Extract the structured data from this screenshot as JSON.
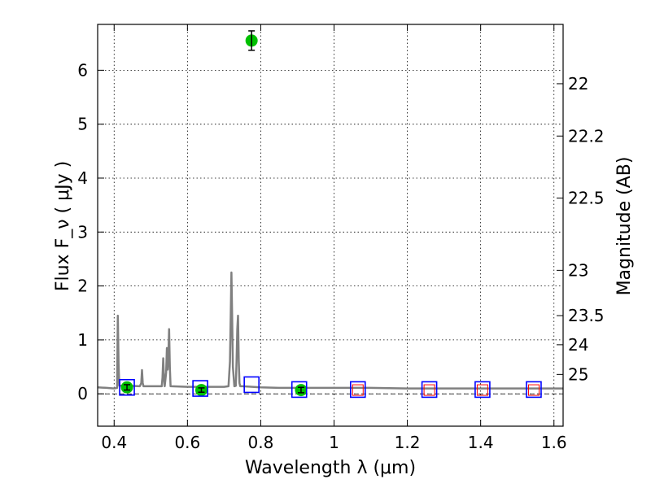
{
  "chart_data": {
    "type": "scatter",
    "title": "",
    "xlabel": "Wavelength  λ (μm)",
    "ylabel": "Flux  F_ν  ( μJy )",
    "ylabel_right": "Magnitude (AB)",
    "xlim": [
      0.355,
      1.625
    ],
    "ylim": [
      -0.6,
      6.85
    ],
    "grid": true,
    "x_ticks": [
      {
        "value": 0.4,
        "label": "0.4"
      },
      {
        "value": 0.6,
        "label": "0.6"
      },
      {
        "value": 0.8,
        "label": "0.8"
      },
      {
        "value": 1.0,
        "label": "1"
      },
      {
        "value": 1.2,
        "label": "1.2"
      },
      {
        "value": 1.4,
        "label": "1.4"
      },
      {
        "value": 1.6,
        "label": "1.6"
      }
    ],
    "y_ticks": [
      {
        "value": 0,
        "label": "0"
      },
      {
        "value": 1,
        "label": "1"
      },
      {
        "value": 2,
        "label": "2"
      },
      {
        "value": 3,
        "label": "3"
      },
      {
        "value": 4,
        "label": "4"
      },
      {
        "value": 5,
        "label": "5"
      },
      {
        "value": 6,
        "label": "6"
      }
    ],
    "right_ticks": [
      {
        "flux": 5.75,
        "label": "22"
      },
      {
        "flux": 4.78,
        "label": "22.2"
      },
      {
        "flux": 3.63,
        "label": "22.5"
      },
      {
        "flux": 2.29,
        "label": "23"
      },
      {
        "flux": 1.45,
        "label": "23.5"
      },
      {
        "flux": 0.91,
        "label": "24"
      },
      {
        "flux": 0.36,
        "label": "25"
      }
    ],
    "series": [
      {
        "kind": "line",
        "color": "#808080",
        "x": [
          0.355,
          0.38,
          0.4,
          0.408,
          0.41,
          0.412,
          0.414,
          0.44,
          0.47,
          0.474,
          0.476,
          0.478,
          0.48,
          0.5,
          0.53,
          0.532,
          0.534,
          0.536,
          0.538,
          0.542,
          0.544,
          0.546,
          0.548,
          0.55,
          0.552,
          0.554,
          0.556,
          0.6,
          0.65,
          0.7,
          0.712,
          0.716,
          0.718,
          0.72,
          0.722,
          0.724,
          0.728,
          0.732,
          0.734,
          0.736,
          0.738,
          0.74,
          0.742,
          0.744,
          0.75,
          0.8,
          0.85,
          0.9,
          0.95,
          1.0,
          1.05,
          1.1,
          1.2,
          1.3,
          1.4,
          1.5,
          1.625
        ],
        "y": [
          0.12,
          0.11,
          0.1,
          0.11,
          1.45,
          0.55,
          0.15,
          0.15,
          0.14,
          0.2,
          0.44,
          0.2,
          0.14,
          0.14,
          0.14,
          0.3,
          0.66,
          0.3,
          0.14,
          0.4,
          0.85,
          0.45,
          0.7,
          1.2,
          0.5,
          0.14,
          0.14,
          0.13,
          0.13,
          0.13,
          0.14,
          0.6,
          1.4,
          2.25,
          1.4,
          0.5,
          0.14,
          0.15,
          0.6,
          1.2,
          1.45,
          0.6,
          0.2,
          0.14,
          0.14,
          0.12,
          0.11,
          0.11,
          0.11,
          0.11,
          0.11,
          0.11,
          0.1,
          0.1,
          0.1,
          0.1,
          0.1
        ]
      },
      {
        "kind": "observed",
        "color": "#00c000",
        "x": [
          0.435,
          0.638,
          0.775,
          0.91
        ],
        "y": [
          0.12,
          0.07,
          6.55,
          0.07
        ],
        "yerr": [
          0.05,
          0.04,
          0.18,
          0.05
        ]
      },
      {
        "kind": "model-photometry-blue",
        "color": "#0000ff",
        "x": [
          0.435,
          0.635,
          0.775,
          0.905,
          1.065,
          1.26,
          1.405,
          1.545
        ],
        "y": [
          0.12,
          0.1,
          0.17,
          0.08,
          0.08,
          0.08,
          0.08,
          0.08
        ]
      },
      {
        "kind": "model-photometry-red",
        "color": "#ff0000",
        "x": [
          1.065,
          1.26,
          1.405,
          1.545
        ],
        "y": [
          0.07,
          0.07,
          0.07,
          0.07
        ]
      }
    ]
  }
}
